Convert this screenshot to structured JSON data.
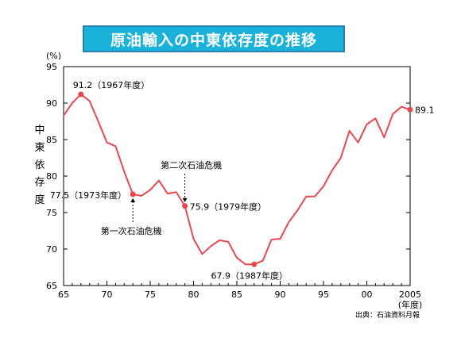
{
  "title": "原油輸入の中東依存度の推移",
  "colors": {
    "title_bg": "#1ab2d8",
    "title_border": "#2a7fb0",
    "line": "#e8474f"
  },
  "chart_data": {
    "type": "line",
    "ylabel": "中東依存度",
    "yunit": "(%)",
    "xunit": "(年度)",
    "ylim": [
      65,
      95
    ],
    "xlim": [
      1965,
      2005
    ],
    "yticks": [
      "65",
      "70",
      "75",
      "80",
      "85",
      "90",
      "95"
    ],
    "xticks": [
      "65",
      "70",
      "75",
      "80",
      "85",
      "90",
      "95",
      "00",
      "2005"
    ],
    "source": "出典：石油資料月報",
    "series": [
      {
        "x": [
          1965,
          1966,
          1967,
          1968,
          1969,
          1970,
          1971,
          1972,
          1973,
          1974,
          1975,
          1976,
          1977,
          1978,
          1979,
          1980,
          1981,
          1982,
          1983,
          1984,
          1985,
          1986,
          1987,
          1988,
          1989,
          1990,
          1991,
          1992,
          1993,
          1994,
          1995,
          1996,
          1997,
          1998,
          1999,
          2000,
          2001,
          2002,
          2003,
          2004,
          2005
        ],
        "y": [
          88.3,
          90.0,
          91.2,
          90.3,
          87.5,
          84.6,
          84.1,
          80.6,
          77.5,
          77.3,
          78.1,
          79.4,
          77.6,
          77.8,
          75.9,
          71.4,
          69.3,
          70.4,
          71.2,
          71.0,
          68.8,
          67.9,
          67.9,
          68.4,
          71.3,
          71.4,
          73.7,
          75.3,
          77.2,
          77.2,
          78.6,
          80.8,
          82.5,
          86.2,
          84.6,
          87.1,
          87.9,
          85.3,
          88.5,
          89.5,
          89.1
        ]
      }
    ],
    "annotations": [
      {
        "text": "91.2（1967年度）",
        "x": 1967,
        "y": 91.2
      },
      {
        "text": "77.5（1973年度）",
        "x": 1973,
        "y": 77.5
      },
      {
        "text": "75.9（1979年度）",
        "x": 1979,
        "y": 75.9
      },
      {
        "text": "67.9（1987年度）",
        "x": 1987,
        "y": 67.9
      },
      {
        "text": "89.1",
        "x": 2005,
        "y": 89.1
      },
      {
        "text": "第一次石油危機",
        "x": 1973,
        "y": 77.5
      },
      {
        "text": "第二次石油危機",
        "x": 1979,
        "y": 75.9
      }
    ]
  }
}
